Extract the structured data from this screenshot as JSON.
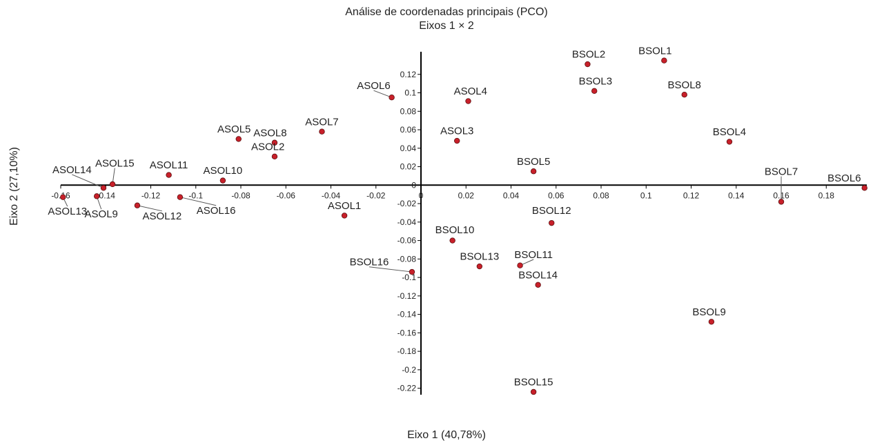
{
  "chart_data": {
    "type": "scatter",
    "title": "Análise de coordenadas principais (PCO)",
    "subtitle": "Eixos 1 × 2",
    "xlabel": "Eixo 1 (40,78%)",
    "ylabel": "Eixo 2 (27,10%)",
    "xlim": [
      -0.16,
      0.198
    ],
    "ylim": [
      -0.227,
      0.14
    ],
    "grid": false,
    "colors": {
      "point": "#c8202a",
      "point_edge": "#5a1010",
      "axis": "#000000",
      "leader": "#555555"
    },
    "x_ticks": [
      {
        "v": -0.16,
        "label": "-0.16"
      },
      {
        "v": -0.14,
        "label": "-0.14"
      },
      {
        "v": -0.12,
        "label": "-0.12"
      },
      {
        "v": -0.1,
        "label": "-0.1"
      },
      {
        "v": -0.08,
        "label": "-0.08"
      },
      {
        "v": -0.06,
        "label": "-0.06"
      },
      {
        "v": -0.04,
        "label": "-0.04"
      },
      {
        "v": -0.02,
        "label": "-0.02"
      },
      {
        "v": 0,
        "label": "0"
      },
      {
        "v": 0.02,
        "label": "0.02"
      },
      {
        "v": 0.04,
        "label": "0.04"
      },
      {
        "v": 0.06,
        "label": "0.06"
      },
      {
        "v": 0.08,
        "label": "0.08"
      },
      {
        "v": 0.1,
        "label": "0.1"
      },
      {
        "v": 0.12,
        "label": "0.12"
      },
      {
        "v": 0.14,
        "label": "0.14"
      },
      {
        "v": 0.16,
        "label": "0.16"
      },
      {
        "v": 0.18,
        "label": "0.18"
      }
    ],
    "y_ticks": [
      {
        "v": 0.12,
        "label": "0.12"
      },
      {
        "v": 0.1,
        "label": "0.1"
      },
      {
        "v": 0.08,
        "label": "0.08"
      },
      {
        "v": 0.06,
        "label": "0.06"
      },
      {
        "v": 0.04,
        "label": "0.04"
      },
      {
        "v": 0.02,
        "label": "0.02"
      },
      {
        "v": 0,
        "label": "0"
      },
      {
        "v": -0.02,
        "label": "-0.02"
      },
      {
        "v": -0.04,
        "label": "-0.04"
      },
      {
        "v": -0.06,
        "label": "-0.06"
      },
      {
        "v": -0.08,
        "label": "-0.08"
      },
      {
        "v": -0.1,
        "label": "-0.1"
      },
      {
        "v": -0.12,
        "label": "-0.12"
      },
      {
        "v": -0.14,
        "label": "-0.14"
      },
      {
        "v": -0.16,
        "label": "-0.16"
      },
      {
        "v": -0.18,
        "label": "-0.18"
      },
      {
        "v": -0.2,
        "label": "-0.2"
      },
      {
        "v": -0.22,
        "label": "-0.22"
      }
    ],
    "points": [
      {
        "label": "BSOL1",
        "x": 0.108,
        "y": 0.135,
        "label_x": 0.104,
        "label_y": 0.142
      },
      {
        "label": "BSOL2",
        "x": 0.074,
        "y": 0.131,
        "label_x": 0.0745,
        "label_y": 0.138
      },
      {
        "label": "BSOL3",
        "x": 0.077,
        "y": 0.102,
        "label_x": 0.0775,
        "label_y": 0.109
      },
      {
        "label": "BSOL8",
        "x": 0.117,
        "y": 0.098,
        "label_x": 0.117,
        "label_y": 0.105
      },
      {
        "label": "BSOL4",
        "x": 0.137,
        "y": 0.047,
        "label_x": 0.137,
        "label_y": 0.054
      },
      {
        "label": "BSOL5",
        "x": 0.05,
        "y": 0.015,
        "label_x": 0.05,
        "label_y": 0.022
      },
      {
        "label": "BSOL7",
        "x": 0.16,
        "y": -0.018,
        "label_x": 0.16,
        "label_y": 0.011,
        "leader": true
      },
      {
        "label": "BSOL6",
        "x": 0.197,
        "y": -0.003,
        "label_x": 0.188,
        "label_y": 0.004
      },
      {
        "label": "BSOL12",
        "x": 0.058,
        "y": -0.041,
        "label_x": 0.058,
        "label_y": -0.031
      },
      {
        "label": "BSOL10",
        "x": 0.014,
        "y": -0.06,
        "label_x": 0.015,
        "label_y": -0.052
      },
      {
        "label": "BSOL13",
        "x": 0.026,
        "y": -0.088,
        "label_x": 0.026,
        "label_y": -0.081
      },
      {
        "label": "BSOL11",
        "x": 0.044,
        "y": -0.087,
        "label_x": 0.05,
        "label_y": -0.079,
        "leader": true
      },
      {
        "label": "BSOL14",
        "x": 0.052,
        "y": -0.108,
        "label_x": 0.052,
        "label_y": -0.101
      },
      {
        "label": "BSOL16",
        "x": -0.004,
        "y": -0.094,
        "label_x": -0.023,
        "label_y": -0.087,
        "leader": true
      },
      {
        "label": "BSOL9",
        "x": 0.129,
        "y": -0.148,
        "label_x": 0.128,
        "label_y": -0.141
      },
      {
        "label": "BSOL15",
        "x": 0.05,
        "y": -0.224,
        "label_x": 0.05,
        "label_y": -0.217
      },
      {
        "label": "ASOL6",
        "x": -0.013,
        "y": 0.095,
        "label_x": -0.021,
        "label_y": 0.104,
        "leader": true
      },
      {
        "label": "ASOL4",
        "x": 0.021,
        "y": 0.091,
        "label_x": 0.022,
        "label_y": 0.098
      },
      {
        "label": "ASOL3",
        "x": 0.016,
        "y": 0.048,
        "label_x": 0.016,
        "label_y": 0.055
      },
      {
        "label": "ASOL7",
        "x": -0.044,
        "y": 0.058,
        "label_x": -0.044,
        "label_y": 0.065
      },
      {
        "label": "ASOL5",
        "x": -0.081,
        "y": 0.05,
        "label_x": -0.083,
        "label_y": 0.057
      },
      {
        "label": "ASOL8",
        "x": -0.065,
        "y": 0.046,
        "label_x": -0.067,
        "label_y": 0.053
      },
      {
        "label": "ASOL2",
        "x": -0.065,
        "y": 0.031,
        "label_x": -0.068,
        "label_y": 0.038
      },
      {
        "label": "ASOL10",
        "x": -0.088,
        "y": 0.005,
        "label_x": -0.088,
        "label_y": 0.012
      },
      {
        "label": "ASOL11",
        "x": -0.112,
        "y": 0.011,
        "label_x": -0.112,
        "label_y": 0.018
      },
      {
        "label": "ASOL15",
        "x": -0.137,
        "y": 0.001,
        "label_x": -0.136,
        "label_y": 0.02,
        "leader": true
      },
      {
        "label": "ASOL14",
        "x": -0.141,
        "y": -0.003,
        "label_x": -0.155,
        "label_y": 0.013,
        "leader": true
      },
      {
        "label": "ASOL13",
        "x": -0.159,
        "y": -0.013,
        "label_x": -0.157,
        "label_y": -0.032,
        "leader": true
      },
      {
        "label": "ASOL9",
        "x": -0.144,
        "y": -0.012,
        "label_x": -0.142,
        "label_y": -0.035,
        "leader": true
      },
      {
        "label": "ASOL12",
        "x": -0.126,
        "y": -0.022,
        "label_x": -0.115,
        "label_y": -0.037,
        "leader": true
      },
      {
        "label": "ASOL16",
        "x": -0.107,
        "y": -0.013,
        "label_x": -0.091,
        "label_y": -0.031,
        "leader": true
      },
      {
        "label": "ASOL1",
        "x": -0.034,
        "y": -0.033,
        "label_x": -0.034,
        "label_y": -0.026
      }
    ]
  }
}
